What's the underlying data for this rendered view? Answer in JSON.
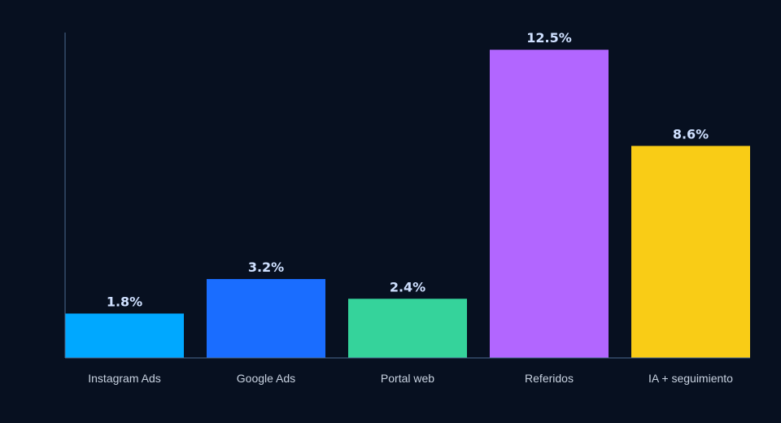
{
  "chart_data": {
    "type": "bar",
    "title": "",
    "xlabel": "",
    "ylabel": "",
    "categories": [
      "Instagram Ads",
      "Google Ads",
      "Portal web",
      "Referidos",
      "IA + seguimiento"
    ],
    "values": [
      1.8,
      3.2,
      2.4,
      12.5,
      8.6
    ],
    "value_labels": [
      "1.8%",
      "3.2%",
      "2.4%",
      "12.5%",
      "8.6%"
    ],
    "colors": [
      "#00a8ff",
      "#1a6dff",
      "#35d39b",
      "#b266ff",
      "#f9cc16"
    ],
    "ylim": [
      0,
      13.2
    ],
    "grid": false,
    "legend": "none"
  },
  "theme": {
    "background": "#071020",
    "axis_color": "#4b6a8f",
    "value_label_color": "#cfe0ff",
    "tick_label_color": "#c8d2e0"
  }
}
